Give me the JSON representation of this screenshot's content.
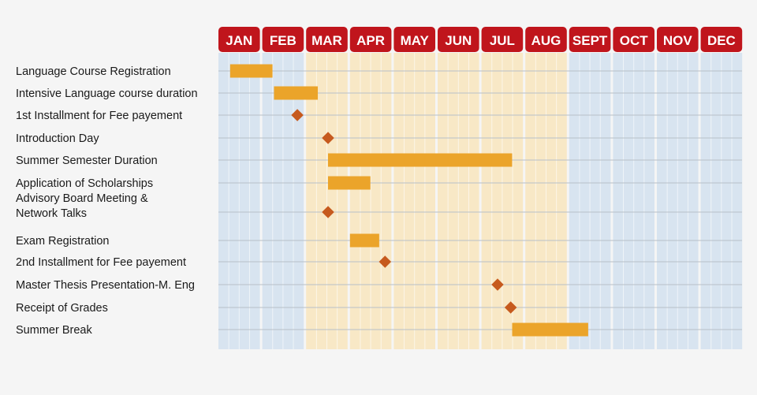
{
  "chart_data": {
    "type": "gantt",
    "months": [
      "JAN",
      "FEB",
      "MAR",
      "APR",
      "MAY",
      "JUN",
      "JUL",
      "AUG",
      "SEPT",
      "OCT",
      "NOV",
      "DEC"
    ],
    "highlighted_months": [
      "MAR",
      "APR",
      "MAY",
      "JUN",
      "JUL",
      "AUG"
    ],
    "tasks": [
      {
        "label": [
          "Language Course Registration"
        ],
        "type": "bar",
        "start": [
          1,
          9
        ],
        "end": [
          2,
          8
        ]
      },
      {
        "label": [
          "Intensive Language course duration"
        ],
        "type": "bar",
        "start": [
          2,
          9
        ],
        "end": [
          3,
          9
        ]
      },
      {
        "label": [
          "1st Installment for Fee payement"
        ],
        "type": "milestone",
        "date": [
          2,
          25
        ]
      },
      {
        "label": [
          "Introduction Day"
        ],
        "type": "milestone",
        "date": [
          3,
          16
        ]
      },
      {
        "label": [
          "Summer Semester Duration"
        ],
        "type": "bar",
        "start": [
          3,
          16
        ],
        "end": [
          7,
          22
        ]
      },
      {
        "label": [
          "Application of Scholarships"
        ],
        "type": "bar",
        "start": [
          3,
          16
        ],
        "end": [
          4,
          15
        ]
      },
      {
        "label": [
          "Advisory Board Meeting &",
          "Network Talks"
        ],
        "type": "milestone",
        "date": [
          3,
          16
        ]
      },
      {
        "label": [
          "Exam Registration"
        ],
        "type": "bar",
        "start": [
          4,
          1
        ],
        "end": [
          4,
          21
        ]
      },
      {
        "label": [
          "2nd Installment for Fee payement"
        ],
        "type": "milestone",
        "date": [
          4,
          25
        ]
      },
      {
        "label": [
          "Master Thesis Presentation-M. Eng"
        ],
        "type": "milestone",
        "date": [
          7,
          12
        ]
      },
      {
        "label": [
          "Receipt of Grades"
        ],
        "type": "milestone",
        "date": [
          7,
          21
        ]
      },
      {
        "label": [
          "Summer Break"
        ],
        "type": "bar",
        "start": [
          7,
          22
        ],
        "end": [
          9,
          14
        ]
      }
    ],
    "colors": {
      "header": "#c0151c",
      "bar": "#eba42a",
      "milestone": "#c65a1e",
      "column_blue": "#d8e4f0",
      "column_yellow": "#f8e8c6",
      "grid_line": "#b8c0c8"
    }
  }
}
